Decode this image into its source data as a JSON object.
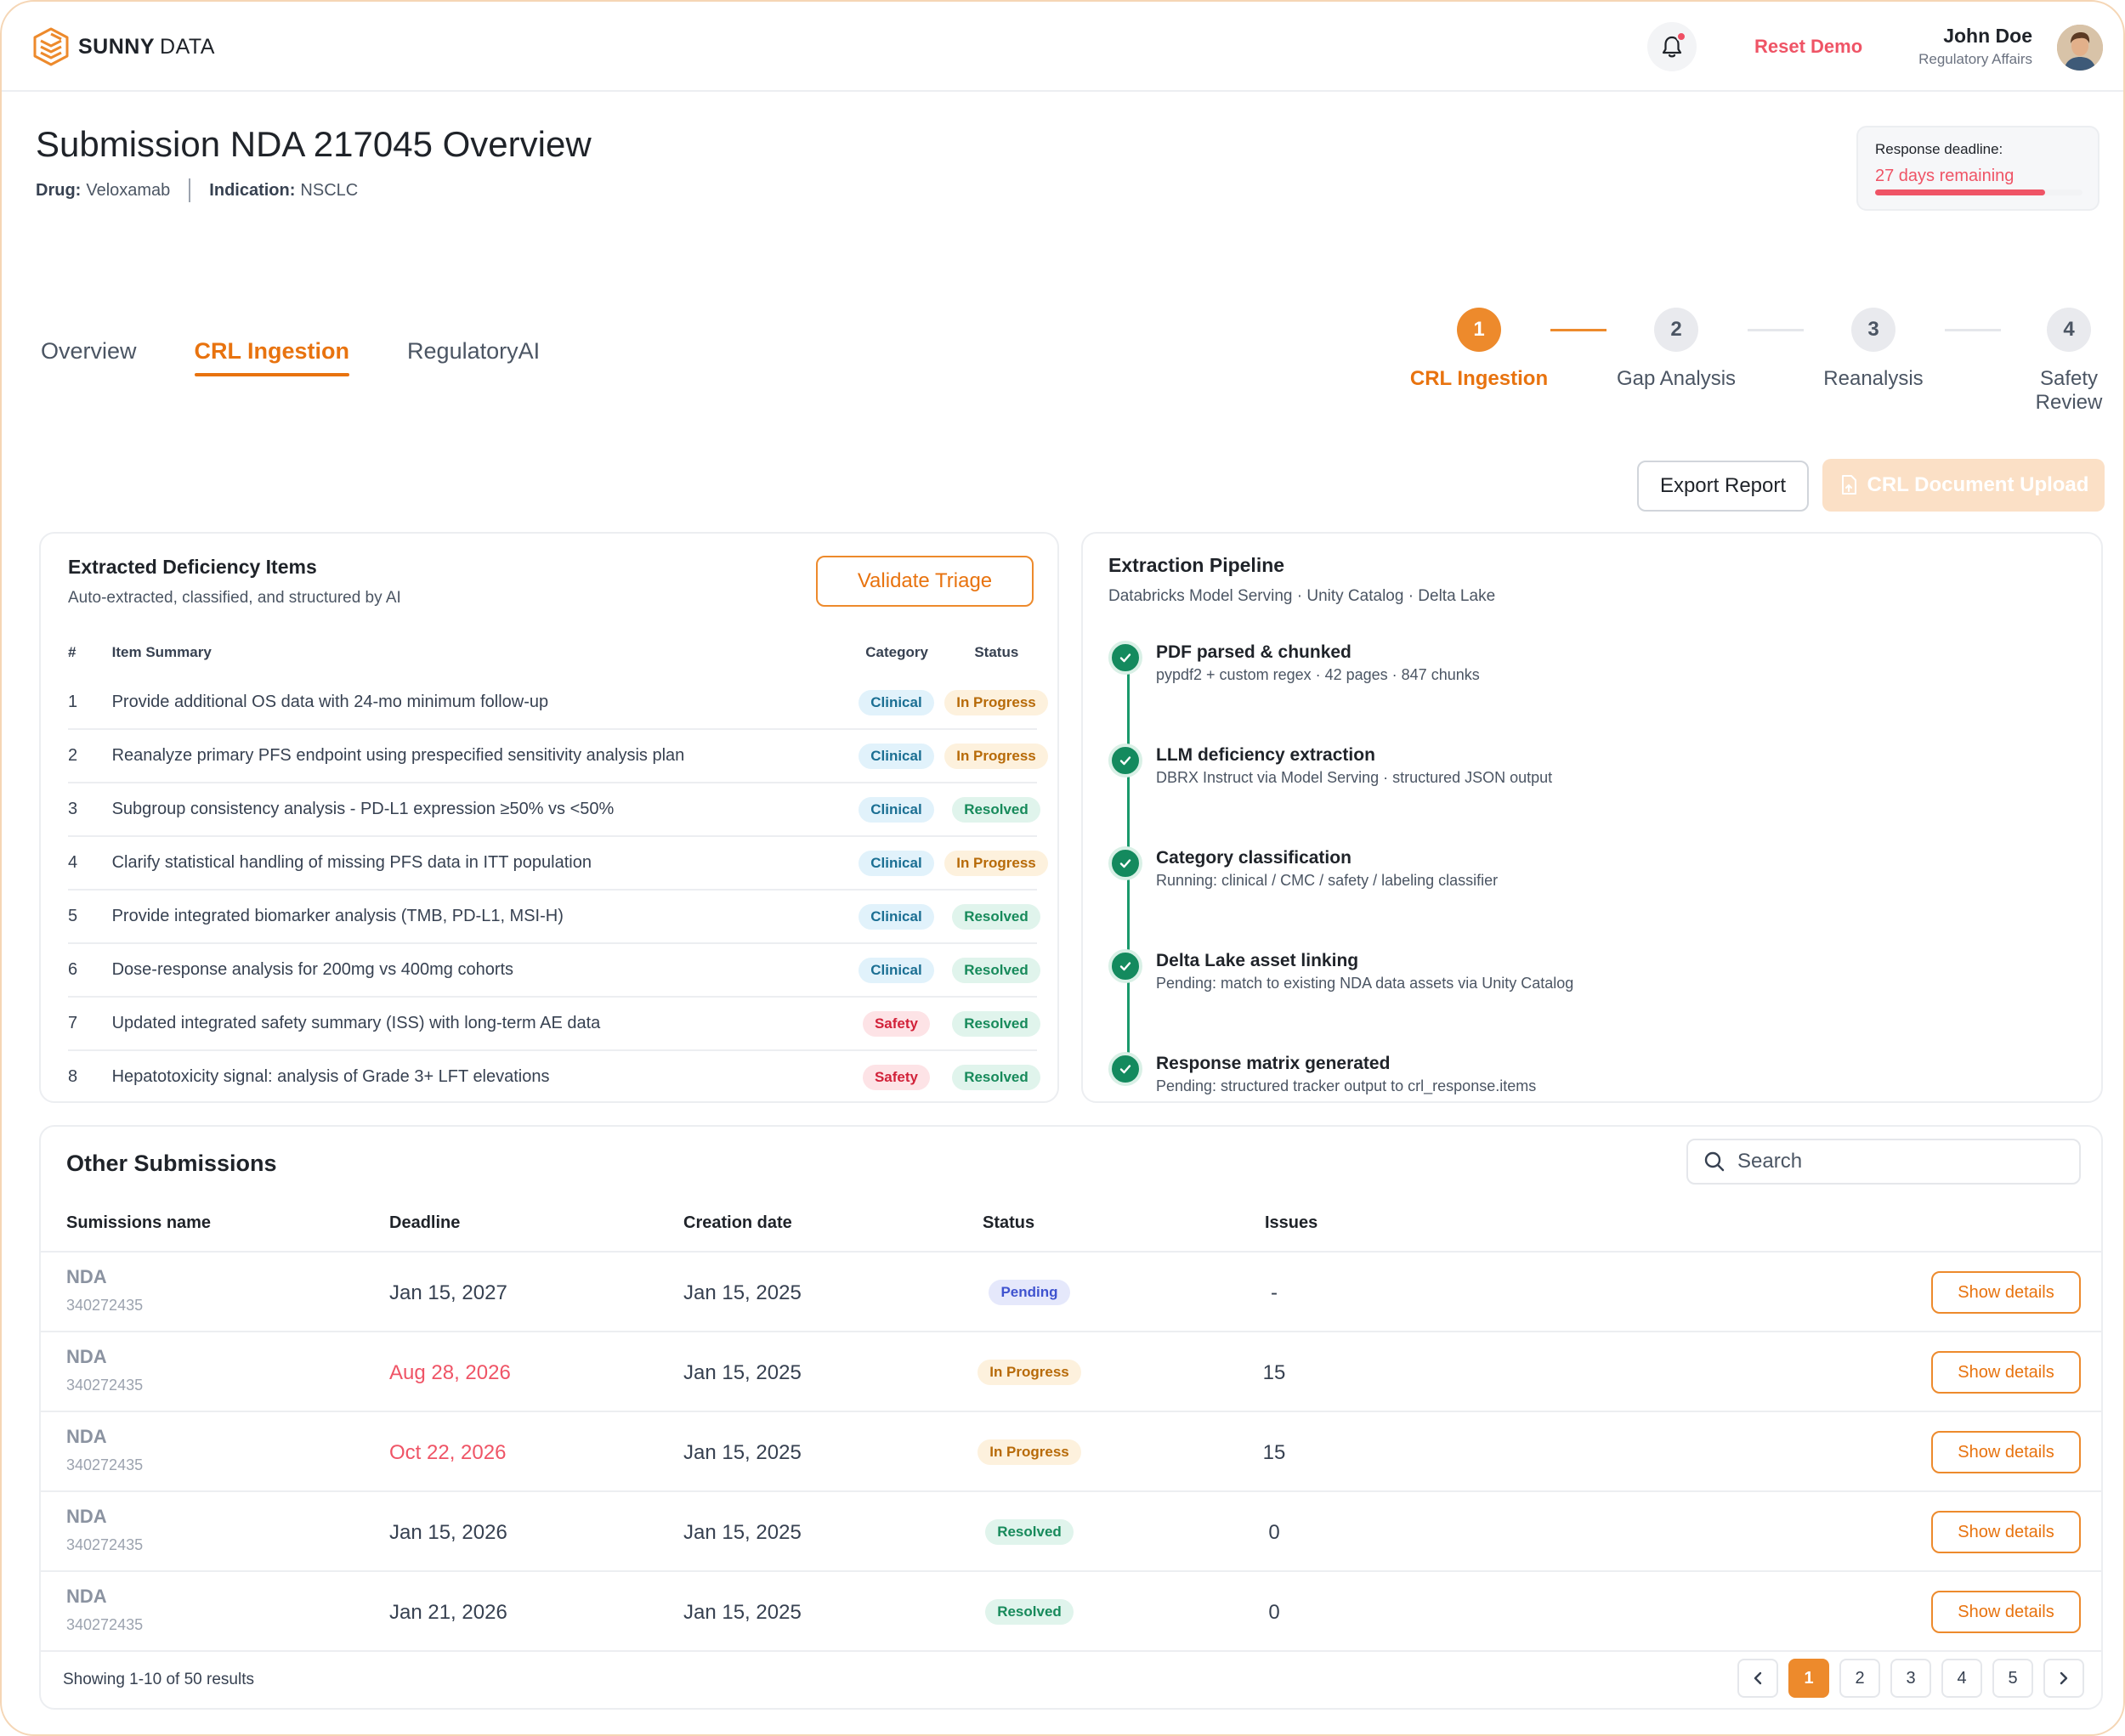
{
  "header": {
    "logo_bold": "SUNNY",
    "logo_light": "DATA",
    "reset_label": "Reset Demo",
    "user_name": "John Doe",
    "user_role": "Regulatory Affairs"
  },
  "page": {
    "title": "Submission NDA 217045 Overview",
    "drug_label": "Drug:",
    "drug_value": "Veloxamab",
    "indication_label": "Indication:",
    "indication_value": "NSCLC"
  },
  "deadline": {
    "label": "Response deadline:",
    "value": "27 days remaining",
    "progress": 0.82
  },
  "tabs": [
    {
      "label": "Overview",
      "active": false
    },
    {
      "label": "CRL Ingestion",
      "active": true
    },
    {
      "label": "RegulatoryAI",
      "active": false
    }
  ],
  "stepper": [
    {
      "num": "1",
      "label": "CRL Ingestion",
      "active": true
    },
    {
      "num": "2",
      "label": "Gap Analysis",
      "active": false
    },
    {
      "num": "3",
      "label": "Reanalysis",
      "active": false
    },
    {
      "num": "4",
      "label": "Safety Review",
      "active": false
    }
  ],
  "actions": {
    "export_label": "Export Report",
    "upload_label": "CRL Document Upload"
  },
  "deficiencies": {
    "title": "Extracted Deficiency Items",
    "subtitle": "Auto-extracted, classified, and structured by AI",
    "validate_label": "Validate Triage",
    "columns": [
      "#",
      "Item Summary",
      "Category",
      "Status"
    ],
    "rows": [
      {
        "num": "1",
        "summary": "Provide additional OS data with 24-mo minimum follow-up",
        "category": "Clinical",
        "status": "In Progress"
      },
      {
        "num": "2",
        "summary": "Reanalyze primary PFS endpoint using prespecified sensitivity analysis plan",
        "category": "Clinical",
        "status": "In Progress"
      },
      {
        "num": "3",
        "summary": "Subgroup consistency analysis - PD-L1 expression ≥50% vs <50%",
        "category": "Clinical",
        "status": "Resolved"
      },
      {
        "num": "4",
        "summary": "Clarify statistical handling of missing PFS data in ITT population",
        "category": "Clinical",
        "status": "In Progress"
      },
      {
        "num": "5",
        "summary": "Provide integrated biomarker analysis (TMB, PD-L1, MSI-H)",
        "category": "Clinical",
        "status": "Resolved"
      },
      {
        "num": "6",
        "summary": "Dose-response analysis for 200mg vs 400mg cohorts",
        "category": "Clinical",
        "status": "Resolved"
      },
      {
        "num": "7",
        "summary": "Updated integrated safety summary (ISS) with long-term AE data",
        "category": "Safety",
        "status": "Resolved"
      },
      {
        "num": "8",
        "summary": "Hepatotoxicity signal: analysis of Grade 3+ LFT elevations",
        "category": "Safety",
        "status": "Resolved"
      }
    ]
  },
  "pipeline": {
    "title": "Extraction Pipeline",
    "subtitle": "Databricks Model Serving · Unity Catalog · Delta Lake",
    "steps": [
      {
        "title": "PDF parsed & chunked",
        "detail": "pypdf2 + custom regex · 42 pages · 847 chunks"
      },
      {
        "title": "LLM deficiency extraction",
        "detail": "DBRX Instruct via Model Serving · structured JSON output"
      },
      {
        "title": "Category classification",
        "detail": "Running: clinical / CMC / safety / labeling classifier"
      },
      {
        "title": "Delta Lake asset linking",
        "detail": "Pending: match to existing NDA data assets via Unity Catalog"
      },
      {
        "title": "Response matrix generated",
        "detail": "Pending: structured tracker output to crl_response.items"
      }
    ]
  },
  "submissions": {
    "title": "Other Submissions",
    "search_placeholder": "Search",
    "columns": {
      "name": "Sumissions name",
      "deadline": "Deadline",
      "created": "Creation date",
      "status": "Status",
      "issues": "Issues"
    },
    "show_label": "Show details",
    "rows": [
      {
        "name": "NDA",
        "id": "340272435",
        "deadline": "Jan 15, 2027",
        "deadline_overdue": false,
        "created": "Jan 15, 2025",
        "status": "Pending",
        "issues": "-"
      },
      {
        "name": "NDA",
        "id": "340272435",
        "deadline": "Aug 28, 2026",
        "deadline_overdue": true,
        "created": "Jan 15, 2025",
        "status": "In Progress",
        "issues": "15"
      },
      {
        "name": "NDA",
        "id": "340272435",
        "deadline": "Oct 22, 2026",
        "deadline_overdue": true,
        "created": "Jan 15, 2025",
        "status": "In Progress",
        "issues": "15"
      },
      {
        "name": "NDA",
        "id": "340272435",
        "deadline": "Jan 15, 2026",
        "deadline_overdue": false,
        "created": "Jan 15, 2025",
        "status": "Resolved",
        "issues": "0"
      },
      {
        "name": "NDA",
        "id": "340272435",
        "deadline": "Jan 21, 2026",
        "deadline_overdue": false,
        "created": "Jan 15, 2025",
        "status": "Resolved",
        "issues": "0"
      }
    ],
    "footer": "Showing 1-10 of 50 results",
    "pages": [
      "1",
      "2",
      "3",
      "4",
      "5"
    ],
    "current_page": "1"
  },
  "colors": {
    "accent": "#ed8a2c",
    "danger": "#ef5466",
    "success": "#148a5e"
  }
}
